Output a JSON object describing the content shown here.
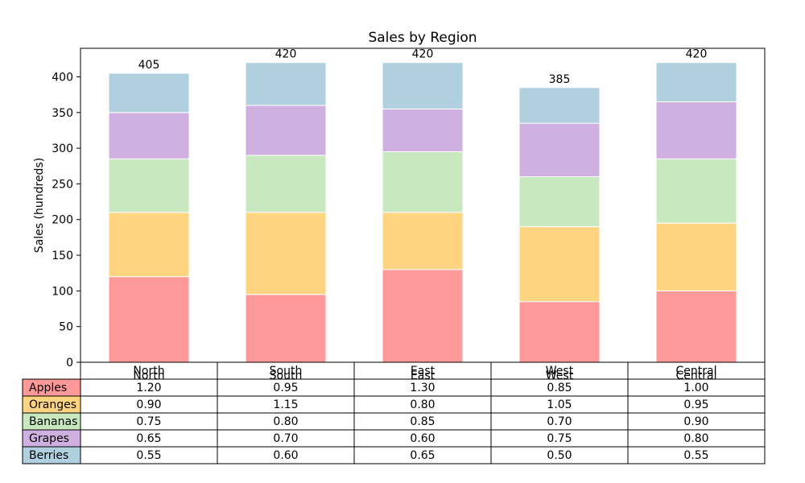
{
  "chart_data": {
    "type": "bar",
    "stacked": true,
    "title": "Sales by Region",
    "xlabel": "",
    "ylabel": "Sales (hundreds)",
    "ylim": [
      0,
      440
    ],
    "yticks": [
      0,
      50,
      100,
      150,
      200,
      250,
      300,
      350,
      400
    ],
    "grid": false,
    "categories": [
      "North",
      "South",
      "East",
      "West",
      "Central"
    ],
    "series": [
      {
        "name": "Apples",
        "color": "#ff9999",
        "values": [
          120,
          95,
          130,
          85,
          100
        ],
        "table_values": [
          "1.20",
          "0.95",
          "1.30",
          "0.85",
          "1.00"
        ]
      },
      {
        "name": "Oranges",
        "color": "#ffd480",
        "values": [
          90,
          115,
          80,
          105,
          95
        ],
        "table_values": [
          "0.90",
          "1.15",
          "0.80",
          "1.05",
          "0.95"
        ]
      },
      {
        "name": "Bananas",
        "color": "#c8e8c0",
        "values": [
          75,
          80,
          85,
          70,
          90
        ],
        "table_values": [
          "0.75",
          "0.80",
          "0.85",
          "0.70",
          "0.90"
        ]
      },
      {
        "name": "Grapes",
        "color": "#d0b0e0",
        "values": [
          65,
          70,
          60,
          75,
          80
        ],
        "table_values": [
          "0.65",
          "0.70",
          "0.60",
          "0.75",
          "0.80"
        ]
      },
      {
        "name": "Berries",
        "color": "#b0d0e0",
        "values": [
          55,
          60,
          65,
          50,
          55
        ],
        "table_values": [
          "0.55",
          "0.60",
          "0.65",
          "0.50",
          "0.55"
        ]
      }
    ],
    "totals": [
      405,
      420,
      420,
      385,
      420
    ],
    "total_labels": [
      "405",
      "420",
      "420",
      "385",
      "420"
    ],
    "legend": "table"
  }
}
